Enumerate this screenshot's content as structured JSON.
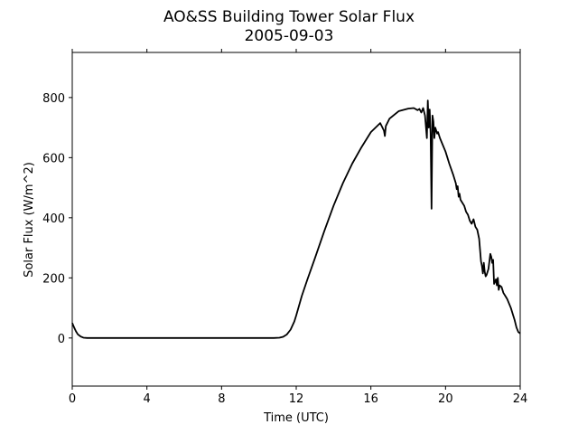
{
  "chart_data": {
    "type": "line",
    "title": "AO&SS Building Tower Solar Flux",
    "subtitle": "2005-09-03",
    "xlabel": "Time (UTC)",
    "ylabel": "Solar Flux (W/m^2)",
    "xlim": [
      0,
      24
    ],
    "ylim": [
      -160,
      950
    ],
    "xticks": [
      0,
      4,
      8,
      12,
      16,
      20,
      24
    ],
    "yticks": [
      0,
      200,
      400,
      600,
      800
    ],
    "grid": false,
    "line_color": "#000000",
    "series": [
      {
        "x": [
          0,
          0.1,
          0.2,
          0.3,
          0.45,
          0.6,
          0.8,
          1.0,
          1.5,
          4,
          8,
          10,
          10.8,
          11.1,
          11.3,
          11.5,
          11.7,
          11.9,
          12.0,
          12.3,
          12.6,
          13,
          13.5,
          14,
          14.5,
          15,
          15.5,
          16,
          16.5,
          16.7,
          16.75,
          16.8,
          17,
          17.5,
          18,
          18.3,
          18.5,
          18.6,
          18.7,
          18.8,
          18.9,
          19.0,
          19.05,
          19.1,
          19.15,
          19.2,
          19.25,
          19.3,
          19.35,
          19.4,
          19.45,
          19.5,
          19.55,
          19.6,
          19.7,
          19.8,
          20,
          20.2,
          20.4,
          20.55,
          20.6,
          20.65,
          20.7,
          20.75,
          20.8,
          20.9,
          21.0,
          21.1,
          21.2,
          21.3,
          21.4,
          21.5,
          21.6,
          21.7,
          21.8,
          21.9,
          21.95,
          22.0,
          22.05,
          22.1,
          22.15,
          22.2,
          22.3,
          22.4,
          22.45,
          22.5,
          22.55,
          22.6,
          22.7,
          22.75,
          22.8,
          22.85,
          22.9,
          23.0,
          23.1,
          23.2,
          23.3,
          23.4,
          23.5,
          23.6,
          23.7,
          23.8,
          23.9,
          24.0
        ],
        "y": [
          50,
          35,
          22,
          12,
          5,
          1,
          0,
          0,
          0,
          0,
          0,
          0,
          0,
          1,
          4,
          12,
          28,
          55,
          75,
          140,
          195,
          265,
          355,
          440,
          515,
          580,
          635,
          685,
          715,
          690,
          672,
          705,
          730,
          755,
          763,
          765,
          758,
          762,
          750,
          765,
          740,
          665,
          790,
          700,
          760,
          680,
          430,
          740,
          720,
          665,
          700,
          690,
          680,
          685,
          665,
          650,
          620,
          580,
          545,
          515,
          495,
          505,
          470,
          480,
          460,
          450,
          440,
          420,
          410,
          390,
          380,
          395,
          370,
          360,
          330,
          255,
          240,
          215,
          250,
          220,
          205,
          210,
          230,
          280,
          270,
          250,
          260,
          180,
          195,
          175,
          200,
          160,
          175,
          170,
          150,
          140,
          130,
          115,
          100,
          80,
          60,
          35,
          20,
          15
        ]
      }
    ]
  }
}
